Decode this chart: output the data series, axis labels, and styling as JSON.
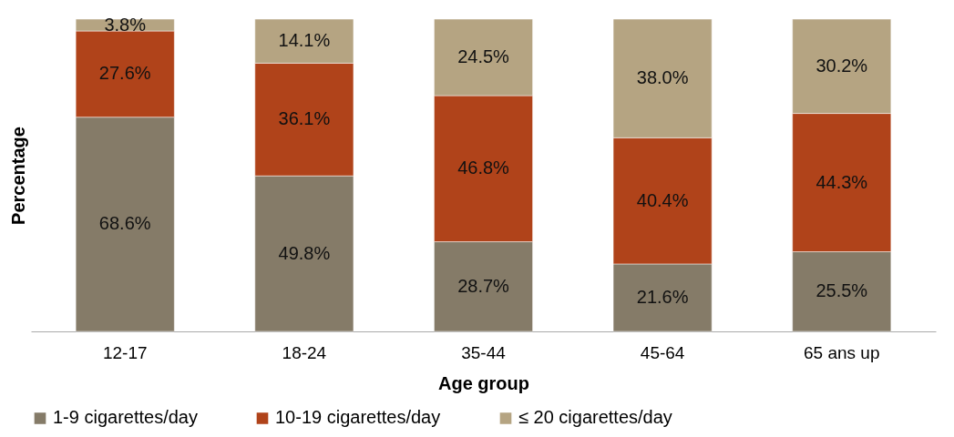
{
  "chart_data": {
    "type": "bar",
    "stacked": true,
    "xlabel": "Age group",
    "ylabel": "Percentage",
    "legend": "bottom",
    "categories": [
      "12-17",
      "18-24",
      "35-44",
      "45-64",
      "65 ans up"
    ],
    "series": [
      {
        "name": "1-9 cigarettes/day",
        "color": "#857b68",
        "values": [
          68.6,
          49.8,
          28.7,
          21.6,
          25.5
        ],
        "value_labels": [
          "68.6%",
          "49.8%",
          "28.7%",
          "21.6%",
          "25.5%"
        ]
      },
      {
        "name": "10-19 cigarettes/day",
        "color": "#b0431a",
        "values": [
          27.6,
          36.1,
          46.8,
          40.4,
          44.3
        ],
        "value_labels": [
          "27.6%",
          "36.1%",
          "46.8%",
          "40.4%",
          "44.3%"
        ]
      },
      {
        "name": "≤ 20 cigarettes/day",
        "color": "#b5a482",
        "values": [
          3.8,
          14.1,
          24.5,
          38.0,
          30.2
        ],
        "value_labels": [
          "3.8%",
          "14.1%",
          "24.5%",
          "38.0%",
          "30.2%"
        ]
      }
    ]
  }
}
